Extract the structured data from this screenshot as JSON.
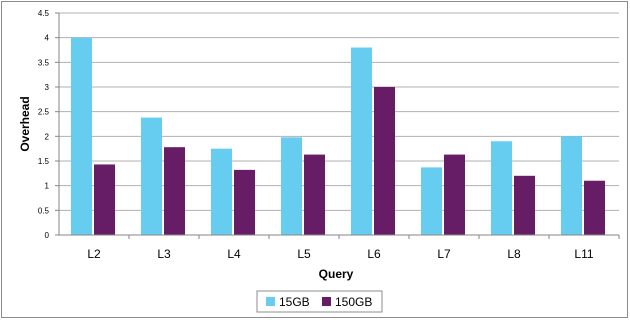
{
  "chart_data": {
    "type": "bar",
    "title": "",
    "xlabel": "Query",
    "ylabel": "Overhead",
    "ylim": [
      0,
      4.5
    ],
    "yticks": [
      "0",
      "0.5",
      "1",
      "1.5",
      "2",
      "2.5",
      "3",
      "3.5",
      "4",
      "4.5"
    ],
    "categories": [
      "L2",
      "L3",
      "L4",
      "L5",
      "L6",
      "L7",
      "L8",
      "L11"
    ],
    "series": [
      {
        "name": "15GB",
        "color": "#66ccf0",
        "values": [
          4.0,
          2.38,
          1.75,
          1.98,
          3.8,
          1.37,
          1.9,
          2.0
        ]
      },
      {
        "name": "150GB",
        "color": "#661d66",
        "values": [
          1.43,
          1.78,
          1.32,
          1.63,
          3.0,
          1.63,
          1.2,
          1.1
        ]
      }
    ],
    "grid": true,
    "legend": "bottom"
  }
}
